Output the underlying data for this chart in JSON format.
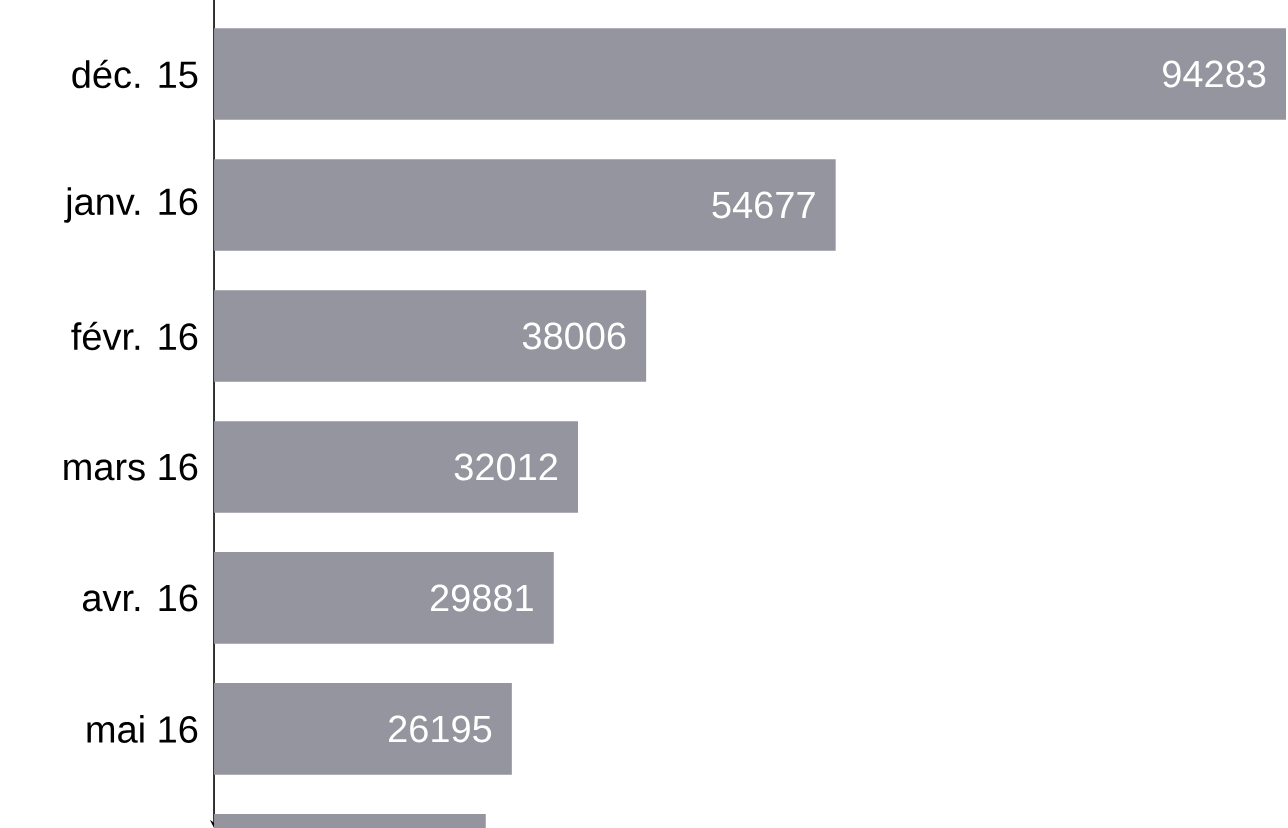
{
  "chart_data": {
    "type": "bar",
    "orientation": "horizontal",
    "tick_labels": "y",
    "color": "#95959f",
    "categories": [
      "déc. 15",
      "janv. 16",
      "févr. 16",
      "mars 16",
      "avr. 16",
      "mai 16",
      null
    ],
    "values": [
      94283,
      54677,
      38006,
      32012,
      29881,
      26195,
      23900
    ],
    "value_labels": [
      "94283",
      "54677",
      "38006",
      "32012",
      "29881",
      "26195",
      null
    ]
  }
}
